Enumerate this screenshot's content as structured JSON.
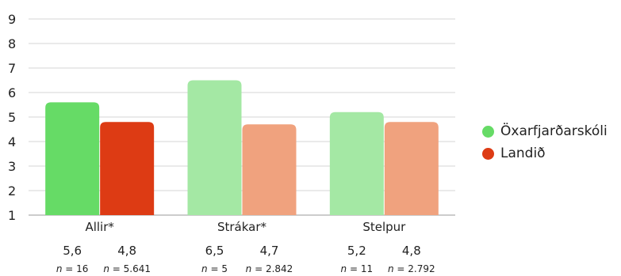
{
  "chart_data": {
    "type": "bar",
    "categories": [
      "Allir*",
      "Strákar*",
      "Stelpur"
    ],
    "series": [
      {
        "name": "Öxarfjarðarskóli",
        "values": [
          5.6,
          6.5,
          5.2
        ],
        "value_labels": [
          "5,6",
          "6,5",
          "5,2"
        ],
        "n_labels": [
          "16",
          "5",
          "11"
        ],
        "colors": [
          "#66DB66",
          "#A4E8A4",
          "#A4E8A4"
        ],
        "legend_color": "#66DB66"
      },
      {
        "name": "Landið",
        "values": [
          4.8,
          4.7,
          4.8
        ],
        "value_labels": [
          "4,8",
          "4,7",
          "4,8"
        ],
        "n_labels": [
          "5.641",
          "2.842",
          "2.792"
        ],
        "colors": [
          "#DD3B14",
          "#F0A27E",
          "#F0A27E"
        ],
        "legend_color": "#DD3B14"
      }
    ],
    "n_prefix": "n",
    "n_separator": " = ",
    "ylim": [
      1,
      9
    ],
    "yticks": [
      1,
      2,
      3,
      4,
      5,
      6,
      7,
      8,
      9
    ],
    "grid": true,
    "legend_position": "right"
  }
}
